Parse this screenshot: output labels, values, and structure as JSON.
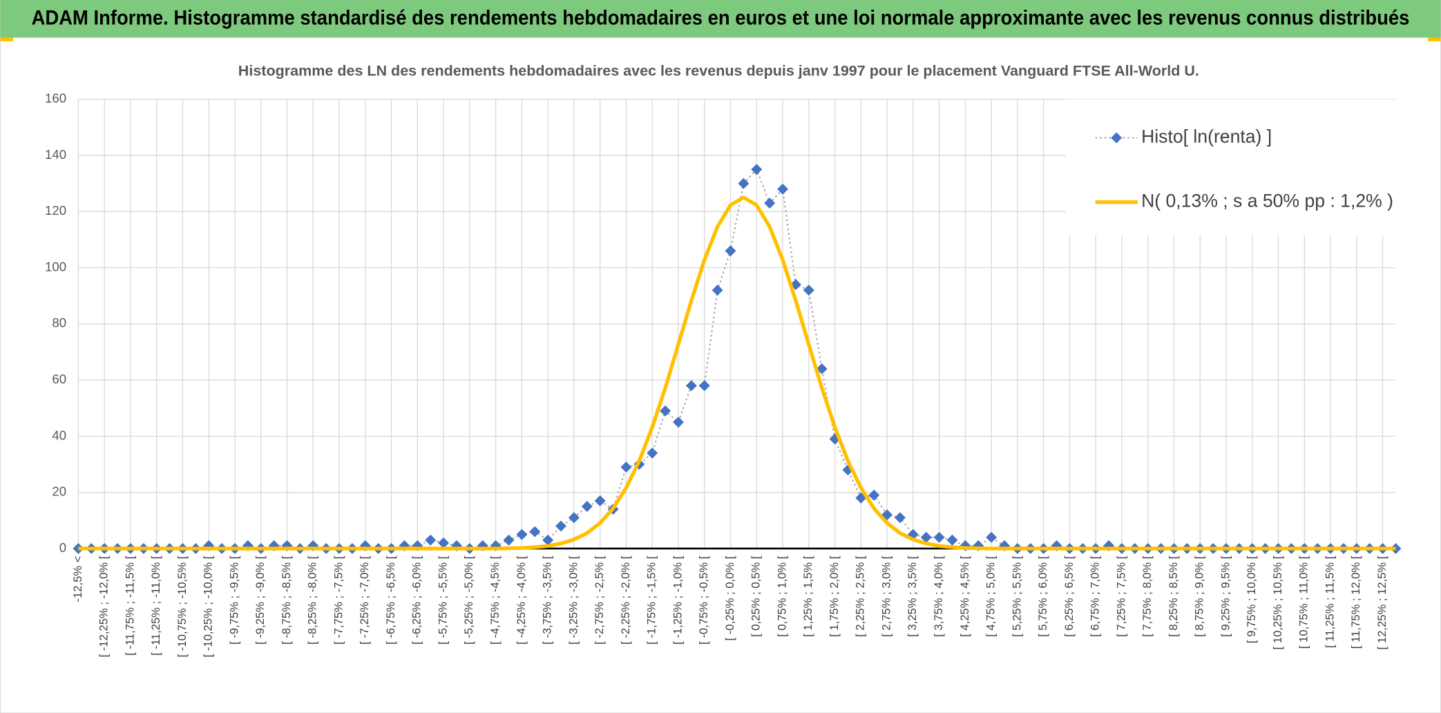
{
  "chart_data": {
    "type": "line",
    "title": "ADAM Informe. Histogramme standardisé des rendements hebdomadaires en euros et une loi normale approximante avec les revenus connus distribués",
    "subtitle": "Histogramme des LN des rendements hebdomadaires avec les revenus depuis janv 1997 pour le placement Vanguard FTSE All-World U.",
    "categories": [
      "-12,5% <",
      null,
      "[ -12,25% ; -12,0% [",
      null,
      "[ -11,75% ; -11,5% [",
      null,
      "[ -11,25% ; -11,0% [",
      null,
      "[ -10,75% ; -10,5% [",
      null,
      "[ -10,25% ; -10,0% [",
      null,
      "[ -9,75% ; -9,5% [",
      null,
      "[ -9,25% ; -9,0% [",
      null,
      "[ -8,75% ; -8,5% [",
      null,
      "[ -8,25% ; -8,0% [",
      null,
      "[ -7,75% ; -7,5% [",
      null,
      "[ -7,25% ; -7,0% [",
      null,
      "[ -6,75% ; -6,5% [",
      null,
      "[ -6,25% ; -6,0% [",
      null,
      "[ -5,75% ; -5,5% [",
      null,
      "[ -5,25% ; -5,0% [",
      null,
      "[ -4,75% ; -4,5% [",
      null,
      "[ -4,25% ; -4,0% [",
      null,
      "[ -3,75% ; -3,5% [",
      null,
      "[ -3,25% ; -3,0% [",
      null,
      "[ -2,75% ; -2,5% [",
      null,
      "[ -2,25% ; -2,0% [",
      null,
      "[ -1,75% ; -1,5% [",
      null,
      "[ -1,25% ; -1,0% [",
      null,
      "[ -0,75% ; -0,5% [",
      null,
      "[ -0,25% ; 0,0% [",
      null,
      "[ 0,25% ; 0,5% [",
      null,
      "[ 0,75% ; 1,0% [",
      null,
      "[ 1,25% ; 1,5% [",
      null,
      "[ 1,75% ; 2,0% [",
      null,
      "[ 2,25% ; 2,5% [",
      null,
      "[ 2,75% ; 3,0% [",
      null,
      "[ 3,25% ; 3,5% [",
      null,
      "[ 3,75% ; 4,0% [",
      null,
      "[ 4,25% ; 4,5% [",
      null,
      "[ 4,75% ; 5,0% [",
      null,
      "[ 5,25% ; 5,5% [",
      null,
      "[ 5,75% ; 6,0% [",
      null,
      "[ 6,25% ; 6,5% [",
      null,
      "[ 6,75% ; 7,0% [",
      null,
      "[ 7,25% ; 7,5% [",
      null,
      "[ 7,75% ; 8,0% [",
      null,
      "[ 8,25% ; 8,5% [",
      null,
      "[ 8,75% ; 9,0% [",
      null,
      "[ 9,25% ; 9,5% [",
      null,
      "[ 9,75% ; 10,0% [",
      null,
      "[ 10,25% ; 10,5% [",
      null,
      "[ 10,75% ; 11,0% [",
      null,
      "[ 11,25% ; 11,5% [",
      null,
      "[ 11,75% ; 12,0% [",
      null,
      "[ 12,25% ; 12,5% [",
      null
    ],
    "series": [
      {
        "name": "Histo[ ln(renta) ]",
        "color": "#4472c4",
        "marker": "diamond",
        "line_color": "#a5a5a5",
        "dashed": true,
        "values": [
          0,
          0,
          0,
          0,
          0,
          0,
          0,
          0,
          0,
          0,
          1,
          0,
          0,
          1,
          0,
          1,
          1,
          0,
          1,
          0,
          0,
          0,
          1,
          0,
          0,
          1,
          1,
          3,
          2,
          1,
          0,
          1,
          1,
          3,
          5,
          6,
          3,
          8,
          11,
          15,
          17,
          14,
          29,
          30,
          34,
          49,
          45,
          58,
          58,
          92,
          106,
          130,
          135,
          123,
          128,
          94,
          92,
          64,
          39,
          28,
          18,
          19,
          12,
          11,
          5,
          4,
          4,
          3,
          1,
          1,
          4,
          1,
          0,
          0,
          0,
          1,
          0,
          0,
          0,
          1,
          0,
          0,
          0,
          0,
          0,
          0,
          0,
          0,
          0,
          0,
          0,
          0,
          0,
          0,
          0,
          0,
          0,
          0,
          0,
          0,
          0,
          0
        ]
      },
      {
        "name": "N( 0,13% ; s a 50% pp : 1,2% )",
        "color": "#ffc000",
        "values": [
          0,
          0,
          0,
          0,
          0,
          0,
          0,
          0,
          0,
          0,
          0,
          0,
          0,
          0,
          0,
          0,
          0,
          0,
          0,
          0,
          0,
          0,
          0,
          0,
          0,
          0,
          0,
          0,
          0,
          0,
          0,
          0,
          0,
          0.1,
          0.2,
          0.5,
          0.9,
          1.8,
          3.2,
          5.5,
          9.1,
          14.3,
          21.6,
          31.2,
          43.2,
          57.2,
          72.7,
          88.3,
          102.8,
          114.6,
          122.3,
          125,
          122.3,
          114.6,
          102.8,
          88.3,
          72.7,
          57.2,
          43.2,
          31.2,
          21.6,
          14.3,
          9.1,
          5.5,
          3.2,
          1.8,
          0.9,
          0.5,
          0.2,
          0.1,
          0,
          0,
          0,
          0,
          0,
          0,
          0,
          0,
          0,
          0,
          0,
          0,
          0,
          0,
          0,
          0,
          0,
          0,
          0,
          0,
          0,
          0,
          0,
          0,
          0,
          0,
          0,
          0,
          0,
          0,
          0,
          0
        ]
      }
    ],
    "ylim": [
      0,
      160
    ],
    "yticks": [
      0,
      20,
      40,
      60,
      80,
      100,
      120,
      140,
      160
    ],
    "grid": true,
    "legend": "top-right"
  }
}
